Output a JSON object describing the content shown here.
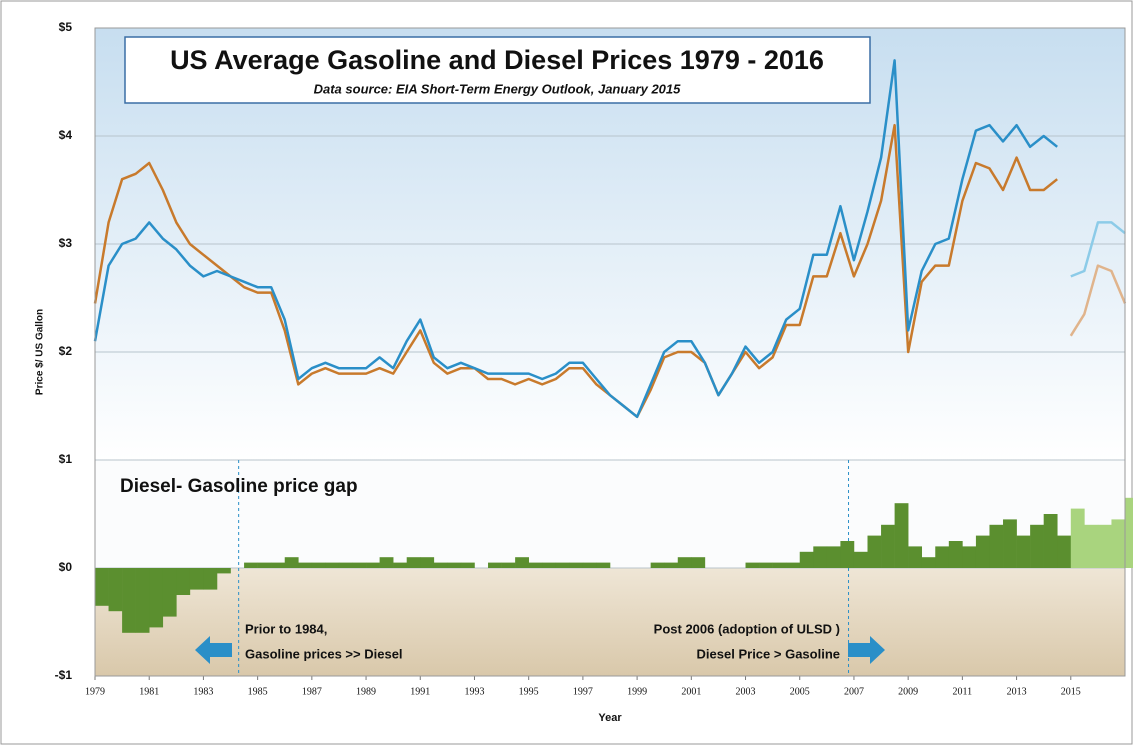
{
  "chart_data": {
    "type": "line",
    "title": "US Average Gasoline and Diesel Prices  1979 - 2016",
    "subtitle": "Data source: EIA Short-Term Energy Outlook, January 2015",
    "y_label": "Price $/ US Gallon",
    "x_label": "Year",
    "annotations": [
      "Diesel- Gasoline price gap",
      "Prior to 1984,",
      "Gasoline prices >> Diesel",
      "Post 2006 (adoption of ULSD )",
      "Diesel Price > Gasoline"
    ],
    "vlines": [
      1984.3,
      2006.8
    ],
    "xlim": [
      1979,
      2017
    ],
    "ylim": [
      -1,
      5
    ],
    "xticks": [
      1979,
      1981,
      1983,
      1985,
      1987,
      1989,
      1991,
      1993,
      1995,
      1997,
      1999,
      2001,
      2003,
      2005,
      2007,
      2009,
      2011,
      2013,
      2015
    ],
    "yticks": [
      {
        "value": -1,
        "label": "-$1"
      },
      {
        "value": 0,
        "label": "$0"
      },
      {
        "value": 1,
        "label": "$1"
      },
      {
        "value": 2,
        "label": "$2"
      },
      {
        "value": 3,
        "label": "$3"
      },
      {
        "value": 4,
        "label": "$4"
      },
      {
        "value": 5,
        "label": "$5"
      }
    ],
    "grid": true,
    "series": [
      {
        "type": "bar",
        "color": "#5b8f2f",
        "x": [
          1979,
          1979.5,
          1980,
          1980.5,
          1981,
          1981.5,
          1982,
          1982.5,
          1983,
          1983.5,
          1984,
          1984.5,
          1985,
          1985.5,
          1986,
          1986.5,
          1987,
          1987.5,
          1988,
          1988.5,
          1989,
          1989.5,
          1990,
          1990.5,
          1991,
          1991.5,
          1992,
          1992.5,
          1993,
          1993.5,
          1994,
          1994.5,
          1995,
          1995.5,
          1996,
          1996.5,
          1997,
          1997.5,
          1998,
          1998.5,
          1999,
          1999.5,
          2000,
          2000.5,
          2001,
          2001.5,
          2002,
          2002.5,
          2003,
          2003.5,
          2004,
          2004.5,
          2005,
          2005.5,
          2006,
          2006.5,
          2007,
          2007.5,
          2008,
          2008.5,
          2009,
          2009.5,
          2010,
          2010.5,
          2011,
          2011.5,
          2012,
          2012.5,
          2013,
          2013.5,
          2014,
          2014.5
        ],
        "values": [
          -0.35,
          -0.4,
          -0.6,
          -0.6,
          -0.55,
          -0.45,
          -0.25,
          -0.2,
          -0.2,
          -0.05,
          0,
          0.05,
          0.05,
          0.05,
          0.1,
          0.05,
          0.05,
          0.05,
          0.05,
          0.05,
          0.05,
          0.1,
          0.05,
          0.1,
          0.1,
          0.05,
          0.05,
          0.05,
          0,
          0.05,
          0.05,
          0.1,
          0.05,
          0.05,
          0.05,
          0.05,
          0.05,
          0.05,
          0,
          0,
          0,
          0.05,
          0.05,
          0.1,
          0.1,
          0,
          0,
          0,
          0.05,
          0.05,
          0.05,
          0.05,
          0.15,
          0.2,
          0.2,
          0.25,
          0.15,
          0.3,
          0.4,
          0.6,
          0.2,
          0.1,
          0.2,
          0.25,
          0.2,
          0.3,
          0.4,
          0.45,
          0.3,
          0.4,
          0.5,
          0.3
        ]
      },
      {
        "type": "bar",
        "color": "#a9d47e",
        "x": [
          2015,
          2015.5,
          2016,
          2016.5,
          2017
        ],
        "values": [
          0.55,
          0.4,
          0.4,
          0.45,
          0.65
        ]
      },
      {
        "type": "line",
        "color": "#c87a2c",
        "x": [
          1979,
          1979.5,
          1980,
          1980.5,
          1981,
          1981.5,
          1982,
          1982.5,
          1983,
          1983.5,
          1984,
          1984.5,
          1985,
          1985.5,
          1986,
          1986.5,
          1987,
          1987.5,
          1988,
          1988.5,
          1989,
          1989.5,
          1990,
          1990.5,
          1991,
          1991.5,
          1992,
          1992.5,
          1993,
          1993.5,
          1994,
          1994.5,
          1995,
          1995.5,
          1996,
          1996.5,
          1997,
          1997.5,
          1998,
          1998.5,
          1999,
          1999.5,
          2000,
          2000.5,
          2001,
          2001.5,
          2002,
          2002.5,
          2003,
          2003.5,
          2004,
          2004.5,
          2005,
          2005.5,
          2006,
          2006.5,
          2007,
          2007.5,
          2008,
          2008.5,
          2009,
          2009.5,
          2010,
          2010.5,
          2011,
          2011.5,
          2012,
          2012.5,
          2013,
          2013.5,
          2014,
          2014.5
        ],
        "values": [
          2.45,
          3.2,
          3.6,
          3.65,
          3.75,
          3.5,
          3.2,
          3.0,
          2.9,
          2.8,
          2.7,
          2.6,
          2.55,
          2.55,
          2.2,
          1.7,
          1.8,
          1.85,
          1.8,
          1.8,
          1.8,
          1.85,
          1.8,
          2.0,
          2.2,
          1.9,
          1.8,
          1.85,
          1.85,
          1.75,
          1.75,
          1.7,
          1.75,
          1.7,
          1.75,
          1.85,
          1.85,
          1.7,
          1.6,
          1.5,
          1.4,
          1.65,
          1.95,
          2.0,
          2.0,
          1.9,
          1.6,
          1.8,
          2.0,
          1.85,
          1.95,
          2.25,
          2.25,
          2.7,
          2.7,
          3.1,
          2.7,
          3.0,
          3.4,
          4.1,
          2.0,
          2.65,
          2.8,
          2.8,
          3.4,
          3.75,
          3.7,
          3.5,
          3.8,
          3.5,
          3.5,
          3.6
        ]
      },
      {
        "type": "line",
        "color": "#2a8fc8",
        "x": [
          1979,
          1979.5,
          1980,
          1980.5,
          1981,
          1981.5,
          1982,
          1982.5,
          1983,
          1983.5,
          1984,
          1984.5,
          1985,
          1985.5,
          1986,
          1986.5,
          1987,
          1987.5,
          1988,
          1988.5,
          1989,
          1989.5,
          1990,
          1990.5,
          1991,
          1991.5,
          1992,
          1992.5,
          1993,
          1993.5,
          1994,
          1994.5,
          1995,
          1995.5,
          1996,
          1996.5,
          1997,
          1997.5,
          1998,
          1998.5,
          1999,
          1999.5,
          2000,
          2000.5,
          2001,
          2001.5,
          2002,
          2002.5,
          2003,
          2003.5,
          2004,
          2004.5,
          2005,
          2005.5,
          2006,
          2006.5,
          2007,
          2007.5,
          2008,
          2008.5,
          2009,
          2009.5,
          2010,
          2010.5,
          2011,
          2011.5,
          2012,
          2012.5,
          2013,
          2013.5,
          2014,
          2014.5
        ],
        "values": [
          2.1,
          2.8,
          3.0,
          3.05,
          3.2,
          3.05,
          2.95,
          2.8,
          2.7,
          2.75,
          2.7,
          2.65,
          2.6,
          2.6,
          2.3,
          1.75,
          1.85,
          1.9,
          1.85,
          1.85,
          1.85,
          1.95,
          1.85,
          2.1,
          2.3,
          1.95,
          1.85,
          1.9,
          1.85,
          1.8,
          1.8,
          1.8,
          1.8,
          1.75,
          1.8,
          1.9,
          1.9,
          1.75,
          1.6,
          1.5,
          1.4,
          1.7,
          2.0,
          2.1,
          2.1,
          1.9,
          1.6,
          1.8,
          2.05,
          1.9,
          2.0,
          2.3,
          2.4,
          2.9,
          2.9,
          3.35,
          2.85,
          3.3,
          3.8,
          4.7,
          2.2,
          2.75,
          3.0,
          3.05,
          3.6,
          4.05,
          4.1,
          3.95,
          4.1,
          3.9,
          4.0,
          3.9
        ]
      },
      {
        "type": "line",
        "color": "#e0b48c",
        "x": [
          2015,
          2015.5,
          2016,
          2016.5,
          2017
        ],
        "values": [
          2.15,
          2.35,
          2.8,
          2.75,
          2.45
        ]
      },
      {
        "type": "line",
        "color": "#8ccbe8",
        "x": [
          2015,
          2015.5,
          2016,
          2016.5,
          2017
        ],
        "values": [
          2.7,
          2.75,
          3.2,
          3.2,
          3.1
        ]
      }
    ]
  }
}
